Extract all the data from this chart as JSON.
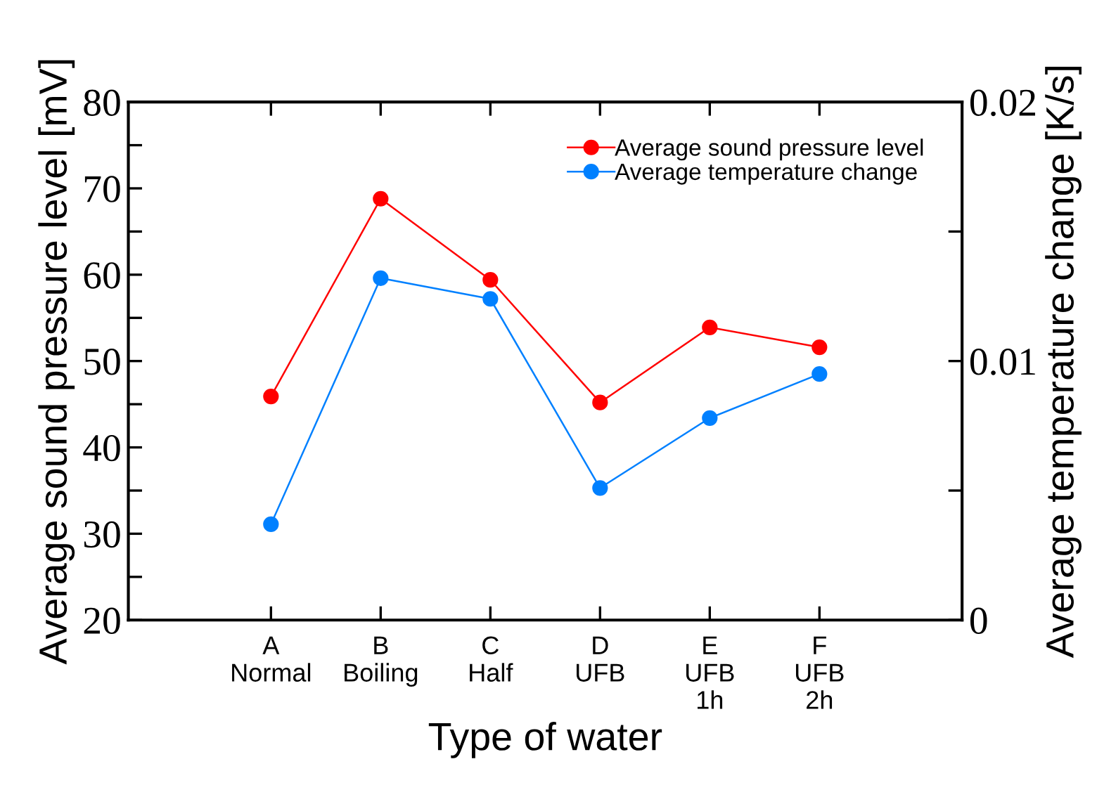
{
  "chart_data": {
    "type": "line",
    "xlabel": "Type of water",
    "ylabel": "Average sound pressure level [mV]",
    "y2label": "Average temperature change [K/s]",
    "categories": [
      "A\nNormal",
      "B\nBoiling",
      "C\nHalf",
      "D\nUFB",
      "E\nUFB\n1h",
      "F\nUFB\n2h"
    ],
    "series": [
      {
        "name": "Average sound pressure level",
        "color": "#ff0000",
        "values": [
          45.9,
          68.8,
          59.4,
          45.2,
          53.9,
          51.6
        ]
      },
      {
        "name": "Average temperature change",
        "color": "#0080ff",
        "axis": "y2",
        "values": [
          0.0037,
          0.0132,
          0.0124,
          0.0051,
          0.0078,
          0.0095
        ]
      }
    ],
    "ylim": [
      20,
      80
    ],
    "yticks": [
      20,
      {
        "value": 25,
        "label": null
      },
      30,
      {
        "value": 35,
        "label": null
      },
      40,
      {
        "value": 45,
        "label": null
      },
      50,
      {
        "value": 55,
        "label": null
      },
      60,
      {
        "value": 65,
        "label": null
      },
      70,
      {
        "value": 75,
        "label": null
      },
      80
    ],
    "y2lim": [
      0,
      0.02
    ],
    "y2ticks": [
      0,
      {
        "value": 0.005,
        "label": null
      },
      0.01,
      {
        "value": 0.015,
        "label": null
      },
      0.02
    ],
    "marker": "circle",
    "line_style": "solid",
    "grid": false,
    "legend": "top right"
  }
}
